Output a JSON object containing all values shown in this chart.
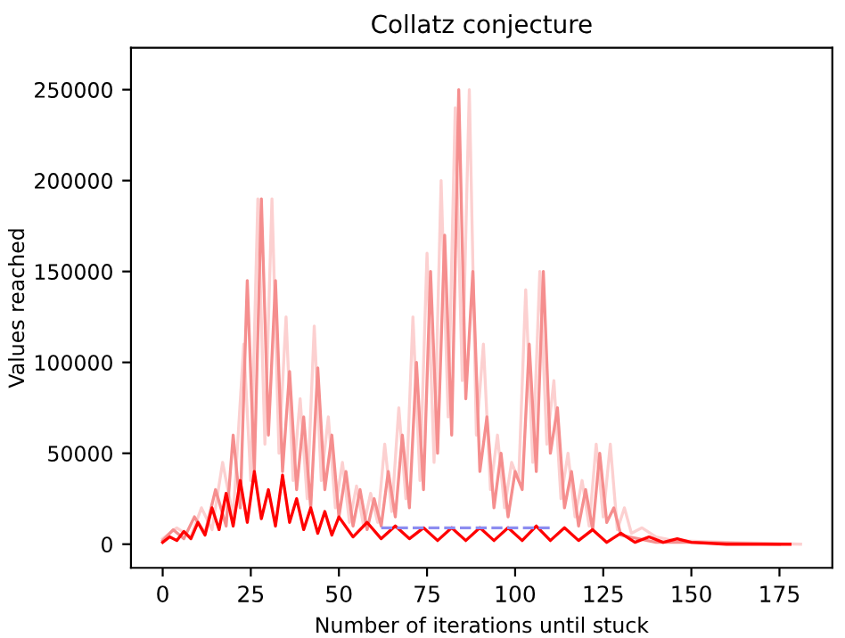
{
  "chart_data": {
    "type": "line",
    "title": "Collatz conjecture",
    "xlabel": "Number of iterations until stuck",
    "ylabel": "Values reached",
    "xlim": [
      -9,
      190
    ],
    "ylim": [
      -13000,
      273000
    ],
    "xticks": [
      0,
      25,
      50,
      75,
      100,
      125,
      150,
      175
    ],
    "yticks": [
      0,
      50000,
      100000,
      150000,
      200000,
      250000
    ],
    "grid": false,
    "legend": false,
    "marker": "none",
    "series": [
      {
        "color": "#fcd0d0",
        "x": [
          0,
          4,
          8,
          11,
          14,
          17,
          20,
          23,
          25,
          27,
          29,
          31,
          33,
          35,
          37,
          39,
          41,
          43,
          45,
          47,
          49,
          51,
          53,
          55,
          57,
          59,
          61,
          63,
          65,
          67,
          69,
          71,
          73,
          75,
          77,
          79,
          81,
          83,
          85,
          87,
          89,
          91,
          93,
          95,
          97,
          99,
          101,
          103,
          105,
          107,
          109,
          111,
          113,
          115,
          117,
          119,
          121,
          123,
          125,
          127,
          129,
          131,
          133,
          136,
          140,
          145,
          160,
          181
        ],
        "values": [
          3000,
          9000,
          4000,
          20000,
          8000,
          45000,
          15000,
          110000,
          35000,
          190000,
          55000,
          190000,
          50000,
          125000,
          35000,
          80000,
          25000,
          120000,
          35000,
          70000,
          20000,
          45000,
          12000,
          32000,
          10000,
          28000,
          12000,
          55000,
          18000,
          75000,
          25000,
          125000,
          35000,
          160000,
          45000,
          200000,
          70000,
          240000,
          90000,
          250000,
          60000,
          110000,
          30000,
          60000,
          20000,
          45000,
          35000,
          140000,
          45000,
          150000,
          55000,
          90000,
          25000,
          50000,
          15000,
          35000,
          10000,
          55000,
          15000,
          55000,
          8000,
          20000,
          6000,
          9000,
          4000,
          2000,
          1000,
          0
        ]
      },
      {
        "color": "#f58e8e",
        "x": [
          0,
          3,
          6,
          9,
          12,
          15,
          18,
          20,
          22,
          24,
          26,
          28,
          30,
          32,
          34,
          36,
          38,
          40,
          42,
          44,
          46,
          48,
          50,
          52,
          54,
          56,
          58,
          60,
          62,
          64,
          66,
          68,
          70,
          72,
          74,
          76,
          78,
          80,
          82,
          84,
          86,
          88,
          90,
          92,
          94,
          96,
          98,
          100,
          102,
          104,
          106,
          108,
          110,
          112,
          114,
          116,
          118,
          120,
          122,
          124,
          126,
          128,
          130,
          135,
          140,
          150,
          175
        ],
        "values": [
          2000,
          8000,
          3000,
          15000,
          6000,
          30000,
          10000,
          60000,
          20000,
          145000,
          40000,
          190000,
          60000,
          145000,
          40000,
          95000,
          30000,
          70000,
          20000,
          97000,
          30000,
          60000,
          15000,
          40000,
          10000,
          30000,
          8000,
          25000,
          10000,
          40000,
          15000,
          60000,
          20000,
          100000,
          30000,
          150000,
          50000,
          170000,
          60000,
          250000,
          80000,
          150000,
          40000,
          70000,
          20000,
          50000,
          15000,
          40000,
          30000,
          110000,
          40000,
          150000,
          50000,
          75000,
          20000,
          40000,
          10000,
          30000,
          8000,
          50000,
          12000,
          20000,
          5000,
          3000,
          1000,
          1000,
          0
        ]
      },
      {
        "color": "#ff0000",
        "x": [
          0,
          2,
          4,
          6,
          8,
          10,
          12,
          14,
          16,
          18,
          20,
          22,
          24,
          26,
          28,
          30,
          32,
          34,
          36,
          38,
          40,
          42,
          44,
          46,
          48,
          50,
          54,
          58,
          62,
          66,
          70,
          74,
          78,
          82,
          86,
          90,
          94,
          98,
          102,
          106,
          110,
          114,
          118,
          122,
          126,
          130,
          134,
          138,
          142,
          146,
          150,
          160,
          170,
          178
        ],
        "values": [
          1000,
          4000,
          2000,
          7000,
          3000,
          12000,
          5000,
          20000,
          8000,
          28000,
          10000,
          35000,
          12000,
          40000,
          14000,
          30000,
          10000,
          38000,
          12000,
          25000,
          8000,
          20000,
          6000,
          18000,
          5000,
          15000,
          4000,
          12000,
          3000,
          10000,
          3000,
          9000,
          2000,
          9000,
          2000,
          9000,
          2000,
          9000,
          2000,
          10000,
          2000,
          9000,
          2000,
          8000,
          1000,
          6000,
          1000,
          4000,
          1000,
          3000,
          1000,
          0,
          0,
          0
        ]
      },
      {
        "color": "#8c8cf0",
        "line_style": "dashed",
        "x": [
          62,
          110
        ],
        "values": [
          9000,
          9000
        ]
      }
    ]
  }
}
